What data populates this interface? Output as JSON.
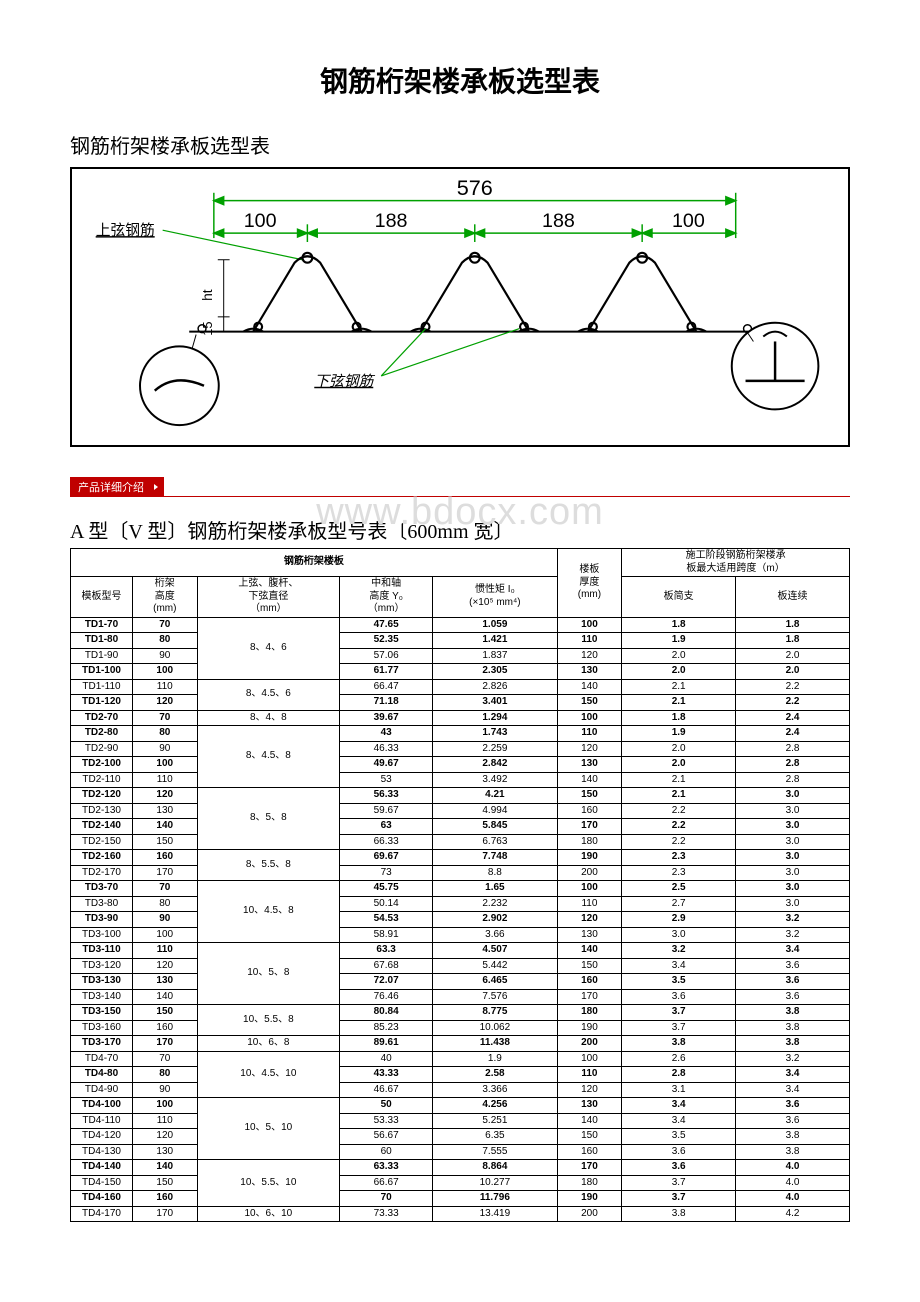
{
  "title": "钢筋桁架楼承板选型表",
  "subtitle": "钢筋桁架楼承板选型表",
  "diagram": {
    "width_label": "576",
    "dims": [
      "100",
      "188",
      "188",
      "100"
    ],
    "top_chord_label": "上弦钢筋",
    "bottom_chord_label": "下弦钢筋",
    "ht_label": "ht",
    "fifteen": "15",
    "colors": {
      "dim_line": "#00a000",
      "label_line": "#00a000",
      "outline": "#000000"
    }
  },
  "red_bar_label": "产品详细介绍",
  "section_title": "A 型〔V 型〕钢筋桁架楼承板型号表〔600mm 宽〕",
  "watermark": "www.bdocx.com",
  "table": {
    "top_header": "钢筋桁架楼板",
    "h_model": "模板型号",
    "h_height": "桁架\n高度\n(mm)",
    "h_dia": "上弦、腹杆、\n下弦直径\n（mm）",
    "h_y0": "中和轴\n高度 Y₀\n（mm）",
    "h_i0": "惯性矩 I₀\n(×10⁵ mm⁴)",
    "h_thick": "楼板\n厚度\n(mm)",
    "h_span_top": "施工阶段钢筋桁架楼承\n板最大适用跨度（m）",
    "h_simple": "板简支",
    "h_cont": "板连续",
    "groups": [
      {
        "dia": "8、4、6",
        "rows": [
          [
            "TD1-70",
            "70",
            "47.65",
            "1.059",
            "100",
            "1.8",
            "1.8",
            true
          ],
          [
            "TD1-80",
            "80",
            "52.35",
            "1.421",
            "110",
            "1.9",
            "1.8",
            true
          ],
          [
            "TD1-90",
            "90",
            "57.06",
            "1.837",
            "120",
            "2.0",
            "2.0",
            false
          ],
          [
            "TD1-100",
            "100",
            "61.77",
            "2.305",
            "130",
            "2.0",
            "2.0",
            true
          ]
        ]
      },
      {
        "dia": "8、4.5、6",
        "rows": [
          [
            "TD1-110",
            "110",
            "66.47",
            "2.826",
            "140",
            "2.1",
            "2.2",
            false
          ],
          [
            "TD1-120",
            "120",
            "71.18",
            "3.401",
            "150",
            "2.1",
            "2.2",
            true
          ]
        ]
      },
      {
        "dia": "8、4、8",
        "rows": [
          [
            "TD2-70",
            "70",
            "39.67",
            "1.294",
            "100",
            "1.8",
            "2.4",
            true
          ]
        ]
      },
      {
        "dia": "8、4.5、8",
        "rows": [
          [
            "TD2-80",
            "80",
            "43",
            "1.743",
            "110",
            "1.9",
            "2.4",
            true
          ],
          [
            "TD2-90",
            "90",
            "46.33",
            "2.259",
            "120",
            "2.0",
            "2.8",
            false
          ],
          [
            "TD2-100",
            "100",
            "49.67",
            "2.842",
            "130",
            "2.0",
            "2.8",
            true
          ],
          [
            "TD2-110",
            "110",
            "53",
            "3.492",
            "140",
            "2.1",
            "2.8",
            false
          ]
        ]
      },
      {
        "dia": "8、5、8",
        "rows": [
          [
            "TD2-120",
            "120",
            "56.33",
            "4.21",
            "150",
            "2.1",
            "3.0",
            true
          ],
          [
            "TD2-130",
            "130",
            "59.67",
            "4.994",
            "160",
            "2.2",
            "3.0",
            false
          ],
          [
            "TD2-140",
            "140",
            "63",
            "5.845",
            "170",
            "2.2",
            "3.0",
            true
          ],
          [
            "TD2-150",
            "150",
            "66.33",
            "6.763",
            "180",
            "2.2",
            "3.0",
            false
          ]
        ]
      },
      {
        "dia": "8、5.5、8",
        "rows": [
          [
            "TD2-160",
            "160",
            "69.67",
            "7.748",
            "190",
            "2.3",
            "3.0",
            true
          ],
          [
            "TD2-170",
            "170",
            "73",
            "8.8",
            "200",
            "2.3",
            "3.0",
            false
          ]
        ]
      },
      {
        "dia": "10、4.5、8",
        "rows": [
          [
            "TD3-70",
            "70",
            "45.75",
            "1.65",
            "100",
            "2.5",
            "3.0",
            true
          ],
          [
            "TD3-80",
            "80",
            "50.14",
            "2.232",
            "110",
            "2.7",
            "3.0",
            false
          ],
          [
            "TD3-90",
            "90",
            "54.53",
            "2.902",
            "120",
            "2.9",
            "3.2",
            true
          ],
          [
            "TD3-100",
            "100",
            "58.91",
            "3.66",
            "130",
            "3.0",
            "3.2",
            false
          ]
        ]
      },
      {
        "dia": "10、5、8",
        "rows": [
          [
            "TD3-110",
            "110",
            "63.3",
            "4.507",
            "140",
            "3.2",
            "3.4",
            true
          ],
          [
            "TD3-120",
            "120",
            "67.68",
            "5.442",
            "150",
            "3.4",
            "3.6",
            false
          ],
          [
            "TD3-130",
            "130",
            "72.07",
            "6.465",
            "160",
            "3.5",
            "3.6",
            true
          ],
          [
            "TD3-140",
            "140",
            "76.46",
            "7.576",
            "170",
            "3.6",
            "3.6",
            false
          ]
        ]
      },
      {
        "dia": "10、5.5、8",
        "rows": [
          [
            "TD3-150",
            "150",
            "80.84",
            "8.775",
            "180",
            "3.7",
            "3.8",
            true
          ],
          [
            "TD3-160",
            "160",
            "85.23",
            "10.062",
            "190",
            "3.7",
            "3.8",
            false
          ]
        ]
      },
      {
        "dia": "10、6、8",
        "rows": [
          [
            "TD3-170",
            "170",
            "89.61",
            "11.438",
            "200",
            "3.8",
            "3.8",
            true
          ]
        ]
      },
      {
        "dia": "10、4.5、10",
        "rows": [
          [
            "TD4-70",
            "70",
            "40",
            "1.9",
            "100",
            "2.6",
            "3.2",
            false
          ],
          [
            "TD4-80",
            "80",
            "43.33",
            "2.58",
            "110",
            "2.8",
            "3.4",
            true
          ],
          [
            "TD4-90",
            "90",
            "46.67",
            "3.366",
            "120",
            "3.1",
            "3.4",
            false
          ]
        ]
      },
      {
        "dia": "10、5、10",
        "rows": [
          [
            "TD4-100",
            "100",
            "50",
            "4.256",
            "130",
            "3.4",
            "3.6",
            true
          ],
          [
            "TD4-110",
            "110",
            "53.33",
            "5.251",
            "140",
            "3.4",
            "3.6",
            false
          ],
          [
            "TD4-120",
            "120",
            "56.67",
            "6.35",
            "150",
            "3.5",
            "3.8",
            false
          ],
          [
            "TD4-130",
            "130",
            "60",
            "7.555",
            "160",
            "3.6",
            "3.8",
            false
          ]
        ]
      },
      {
        "dia": "10、5.5、10",
        "rows": [
          [
            "TD4-140",
            "140",
            "63.33",
            "8.864",
            "170",
            "3.6",
            "4.0",
            true
          ],
          [
            "TD4-150",
            "150",
            "66.67",
            "10.277",
            "180",
            "3.7",
            "4.0",
            false
          ],
          [
            "TD4-160",
            "160",
            "70",
            "11.796",
            "190",
            "3.7",
            "4.0",
            true
          ]
        ]
      },
      {
        "dia": "10、6、10",
        "rows": [
          [
            "TD4-170",
            "170",
            "73.33",
            "13.419",
            "200",
            "3.8",
            "4.2",
            false
          ]
        ]
      }
    ]
  }
}
